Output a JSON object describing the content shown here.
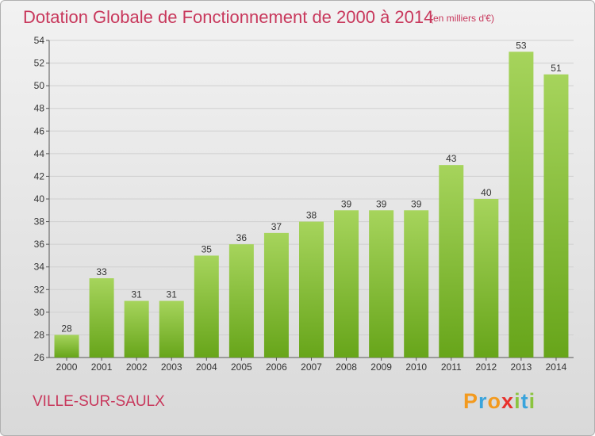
{
  "title": "Dotation Globale de Fonctionnement de 2000 à 2014",
  "subtitle": "(en milliers d'€)",
  "commune": "VILLE-SUR-SAULX",
  "logo": {
    "letters": [
      "P",
      "r",
      "o",
      "x",
      "i",
      "t",
      "i"
    ],
    "colors": [
      "#f39a1e",
      "#3aa4dc",
      "#f39a1e",
      "#e8312c",
      "#8bc43f",
      "#3aa4dc",
      "#8bc43f"
    ]
  },
  "colors": {
    "title": "#c8385c",
    "bar_light": "#a6d45c",
    "bar_dark": "#67a51a",
    "grid": "#cfcfcf"
  },
  "chart_data": {
    "type": "bar",
    "title": "Dotation Globale de Fonctionnement de 2000 à 2014",
    "subtitle": "(en milliers d'€)",
    "categories": [
      "2000",
      "2001",
      "2002",
      "2003",
      "2004",
      "2005",
      "2006",
      "2007",
      "2008",
      "2009",
      "2010",
      "2011",
      "2012",
      "2013",
      "2014"
    ],
    "values": [
      28,
      33,
      31,
      31,
      35,
      36,
      37,
      38,
      39,
      39,
      39,
      43,
      40,
      53,
      51
    ],
    "ylim": [
      26,
      54
    ],
    "yticks": [
      26,
      28,
      30,
      32,
      34,
      36,
      38,
      40,
      42,
      44,
      46,
      48,
      50,
      52,
      54
    ],
    "grid": true,
    "data_labels": true
  }
}
